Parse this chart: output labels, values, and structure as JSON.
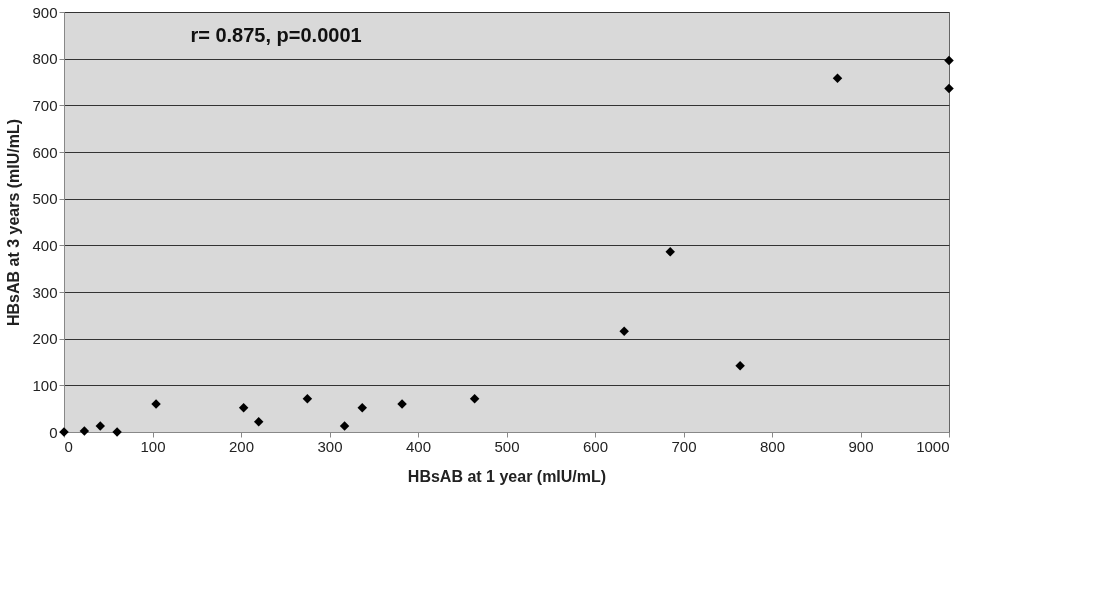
{
  "chart_data": {
    "type": "scatter",
    "xlabel": "HBsAB at 1 year (mIU/mL)",
    "ylabel": "HBsAB at 3 years (mIU/mL)",
    "annotations": [
      "r= 0.875, p=0.0001"
    ],
    "x": [
      0,
      23,
      41,
      60,
      104,
      203,
      220,
      275,
      317,
      337,
      382,
      464,
      633,
      685,
      764,
      874,
      1000,
      1000
    ],
    "series": [
      {
        "color": "#000000",
        "values": [
          0,
          2,
          13,
          0,
          60,
          52,
          22,
          71,
          13,
          52,
          60,
          71,
          216,
          386,
          142,
          758,
          796,
          736
        ]
      }
    ],
    "xlim": [
      0,
      1000
    ],
    "xticks": [
      0,
      100,
      200,
      300,
      400,
      500,
      600,
      700,
      800,
      900,
      1000
    ],
    "ylim": [
      0,
      900
    ],
    "yticks": [
      0,
      100,
      200,
      300,
      400,
      500,
      600,
      700,
      800,
      900
    ],
    "grid": "y",
    "marker": "diamond",
    "legend": false
  }
}
